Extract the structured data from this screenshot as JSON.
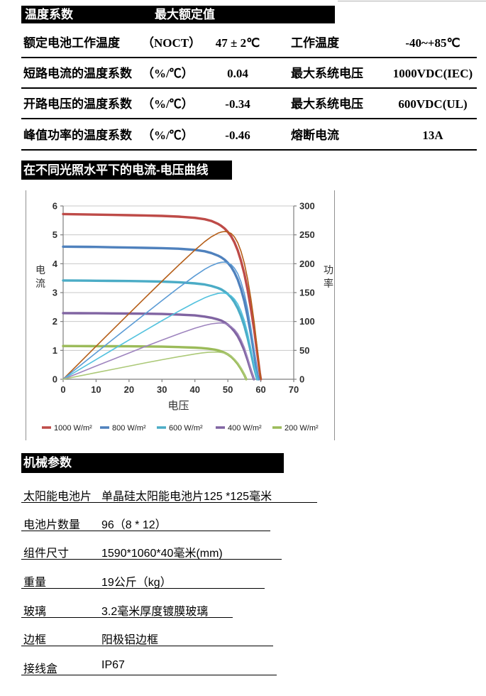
{
  "spec_section": {
    "header": {
      "col1": "温度系数",
      "col2": "最大额定值"
    },
    "rows": [
      {
        "c1": "额定电池工作温度",
        "c2": "（NOCT）",
        "c3": "47 ± 2℃",
        "c4": "工作温度",
        "c5": "-40~+85℃"
      },
      {
        "c1": "短路电流的温度系数",
        "c2": "（%/℃）",
        "c3": "0.04",
        "c4": "最大系统电压",
        "c5": "1000VDC(IEC)"
      },
      {
        "c1": "开路电压的温度系数",
        "c2": "（%/℃）",
        "c3": "-0.34",
        "c4": "最大系统电压",
        "c5": "600VDC(UL)"
      },
      {
        "c1": "峰值功率的温度系数",
        "c2": "（%/℃）",
        "c3": "-0.46",
        "c4": "熔断电流",
        "c5": "13A"
      }
    ]
  },
  "chart_section": {
    "title": "在不同光照水平下的电流-电压曲线"
  },
  "chart_data": {
    "type": "line",
    "title": "在不同光照水平下的电流-电压曲线",
    "xlabel": "电压",
    "ylabel_left": "电流",
    "ylabel_right": "功率",
    "xlim": [
      0,
      70
    ],
    "ylim_left": [
      0,
      6
    ],
    "ylim_right": [
      0,
      300
    ],
    "x_ticks": [
      0,
      10,
      20,
      30,
      40,
      50,
      60,
      70
    ],
    "y_ticks_left": [
      0,
      1,
      2,
      3,
      4,
      5,
      6
    ],
    "y_ticks_right": [
      0,
      50,
      100,
      150,
      200,
      250,
      300
    ],
    "grid": "horizontal",
    "legend_position": "bottom",
    "note": "Each irradiance level has a thick I-V curve (left axis, A) and a thin P-V curve (right axis, W, P = V × I)",
    "series": [
      {
        "name": "1000 W/m²",
        "color": "#BE4B48",
        "pv_color": "#B55E18",
        "isc": 5.72,
        "voc": 60.0,
        "pmax": 256,
        "iv": [
          [
            0,
            5.72
          ],
          [
            5,
            5.71
          ],
          [
            10,
            5.7
          ],
          [
            15,
            5.69
          ],
          [
            20,
            5.68
          ],
          [
            25,
            5.67
          ],
          [
            30,
            5.655
          ],
          [
            35,
            5.63
          ],
          [
            40,
            5.59
          ],
          [
            43,
            5.54
          ],
          [
            45,
            5.48
          ],
          [
            47,
            5.38
          ],
          [
            48,
            5.31
          ],
          [
            49,
            5.22
          ],
          [
            50,
            5.1
          ],
          [
            51,
            4.95
          ],
          [
            52,
            4.74
          ],
          [
            53,
            4.46
          ],
          [
            54,
            4.1
          ],
          [
            55,
            3.65
          ],
          [
            56,
            3.1
          ],
          [
            57,
            2.45
          ],
          [
            58,
            1.7
          ],
          [
            59,
            0.85
          ],
          [
            59.7,
            0.22
          ],
          [
            60,
            0
          ]
        ]
      },
      {
        "name": "800 W/m²",
        "color": "#4F81BD",
        "pv_color": "#5B9BD5",
        "isc": 4.59,
        "voc": 59.4,
        "pmax": 203,
        "iv": [
          [
            0,
            4.59
          ],
          [
            5,
            4.585
          ],
          [
            10,
            4.58
          ],
          [
            15,
            4.57
          ],
          [
            20,
            4.56
          ],
          [
            25,
            4.55
          ],
          [
            30,
            4.54
          ],
          [
            35,
            4.52
          ],
          [
            40,
            4.48
          ],
          [
            43,
            4.43
          ],
          [
            45,
            4.37
          ],
          [
            47,
            4.28
          ],
          [
            48,
            4.22
          ],
          [
            49,
            4.14
          ],
          [
            50,
            4.03
          ],
          [
            51,
            3.89
          ],
          [
            52,
            3.7
          ],
          [
            53,
            3.45
          ],
          [
            54,
            3.12
          ],
          [
            55,
            2.7
          ],
          [
            56,
            2.18
          ],
          [
            57,
            1.57
          ],
          [
            58,
            0.88
          ],
          [
            59,
            0.15
          ],
          [
            59.4,
            0
          ]
        ]
      },
      {
        "name": "600 W/m²",
        "color": "#4BACC6",
        "pv_color": "#53C2DE",
        "isc": 3.42,
        "voc": 58.9,
        "pmax": 149,
        "iv": [
          [
            0,
            3.42
          ],
          [
            5,
            3.415
          ],
          [
            10,
            3.41
          ],
          [
            15,
            3.405
          ],
          [
            20,
            3.4
          ],
          [
            25,
            3.39
          ],
          [
            30,
            3.38
          ],
          [
            35,
            3.36
          ],
          [
            40,
            3.32
          ],
          [
            43,
            3.28
          ],
          [
            45,
            3.23
          ],
          [
            47,
            3.16
          ],
          [
            48,
            3.11
          ],
          [
            49,
            3.04
          ],
          [
            50,
            2.95
          ],
          [
            51,
            2.83
          ],
          [
            52,
            2.67
          ],
          [
            53,
            2.46
          ],
          [
            54,
            2.19
          ],
          [
            55,
            1.85
          ],
          [
            56,
            1.43
          ],
          [
            57,
            0.94
          ],
          [
            58,
            0.4
          ],
          [
            58.9,
            0
          ]
        ]
      },
      {
        "name": "400 W/m²",
        "color": "#8064A2",
        "pv_color": "#9E84BE",
        "isc": 2.29,
        "voc": 57.9,
        "pmax": 97,
        "iv": [
          [
            0,
            2.29
          ],
          [
            5,
            2.288
          ],
          [
            10,
            2.285
          ],
          [
            15,
            2.28
          ],
          [
            20,
            2.275
          ],
          [
            25,
            2.27
          ],
          [
            30,
            2.26
          ],
          [
            35,
            2.24
          ],
          [
            40,
            2.21
          ],
          [
            43,
            2.17
          ],
          [
            45,
            2.13
          ],
          [
            47,
            2.07
          ],
          [
            48,
            2.03
          ],
          [
            49,
            1.97
          ],
          [
            50,
            1.89
          ],
          [
            51,
            1.79
          ],
          [
            52,
            1.66
          ],
          [
            53,
            1.49
          ],
          [
            54,
            1.27
          ],
          [
            55,
            1.0
          ],
          [
            56,
            0.67
          ],
          [
            57,
            0.3
          ],
          [
            57.9,
            0
          ]
        ]
      },
      {
        "name": "200 W/m²",
        "color": "#9BBB59",
        "pv_color": "#ACC978",
        "isc": 1.15,
        "voc": 55.6,
        "pmax": 47,
        "iv": [
          [
            0,
            1.15
          ],
          [
            5,
            1.148
          ],
          [
            10,
            1.146
          ],
          [
            15,
            1.143
          ],
          [
            20,
            1.14
          ],
          [
            25,
            1.135
          ],
          [
            30,
            1.128
          ],
          [
            35,
            1.115
          ],
          [
            40,
            1.095
          ],
          [
            42,
            1.08
          ],
          [
            44,
            1.06
          ],
          [
            46,
            1.025
          ],
          [
            47,
            1.0
          ],
          [
            48,
            0.965
          ],
          [
            49,
            0.92
          ],
          [
            50,
            0.86
          ],
          [
            51,
            0.78
          ],
          [
            52,
            0.67
          ],
          [
            53,
            0.53
          ],
          [
            54,
            0.36
          ],
          [
            55,
            0.15
          ],
          [
            55.6,
            0
          ]
        ]
      }
    ]
  },
  "mech_section": {
    "title": "机械参数",
    "rows": [
      {
        "label": "太阳能电池片",
        "value": "单晶硅太阳能电池片125 *125毫米"
      },
      {
        "label": "电池片数量",
        "value": "96（8 * 12）"
      },
      {
        "label": "组件尺寸",
        "value": "1590*1060*40毫米(mm)"
      },
      {
        "label": "重量",
        "value": "19公斤（kg）"
      },
      {
        "label": "玻璃",
        "value": "3.2毫米厚度镀膜玻璃"
      },
      {
        "label": "边框",
        "value": "阳极铝边框"
      },
      {
        "label": "接线盒",
        "value": "IP67"
      }
    ]
  }
}
